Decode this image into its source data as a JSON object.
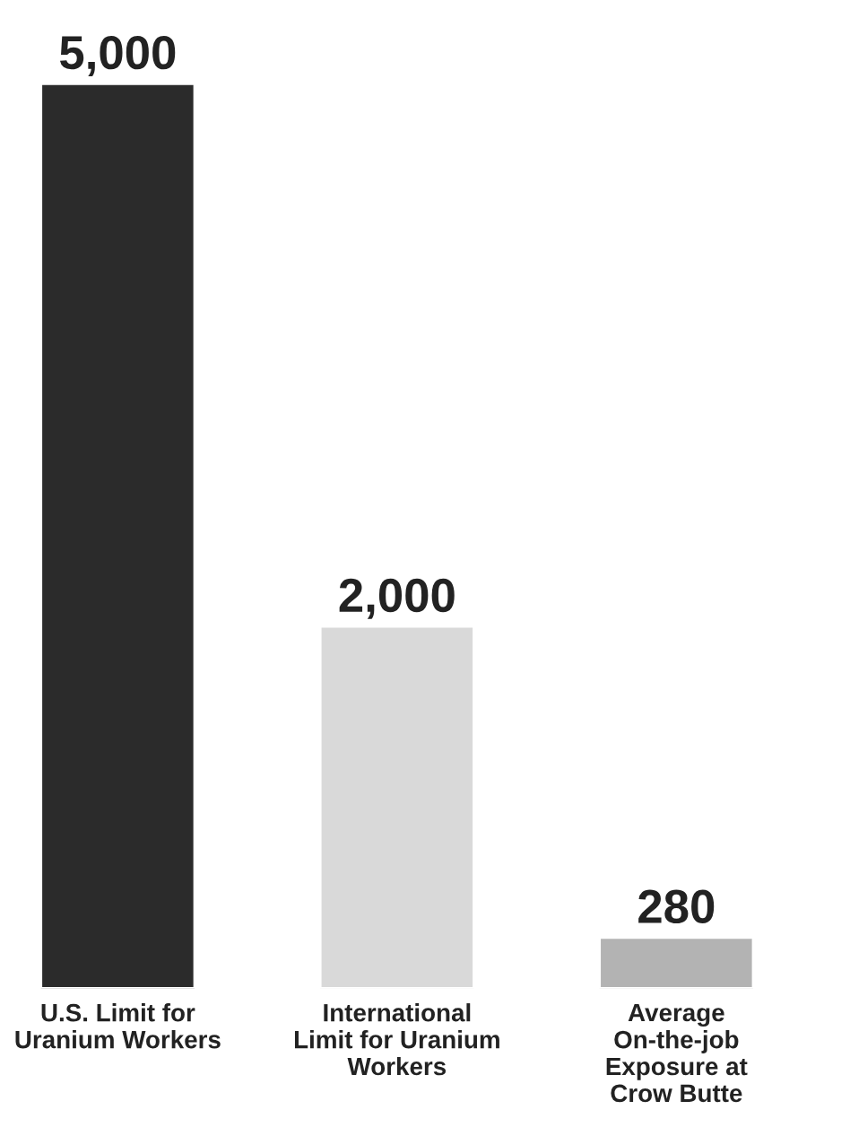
{
  "chart_data": {
    "type": "bar",
    "categories": [
      "U.S. Limit for\nUranium Workers",
      "International\nLimit for Uranium\nWorkers",
      "Average\nOn-the-job\nExposure at\nCrow Butte"
    ],
    "values": [
      5000,
      2000,
      280
    ],
    "colors": [
      "#2b2b2b",
      "#d9d9d9",
      "#b3b3b3"
    ],
    "value_labels": [
      "5,000",
      "2,000",
      "280"
    ]
  }
}
